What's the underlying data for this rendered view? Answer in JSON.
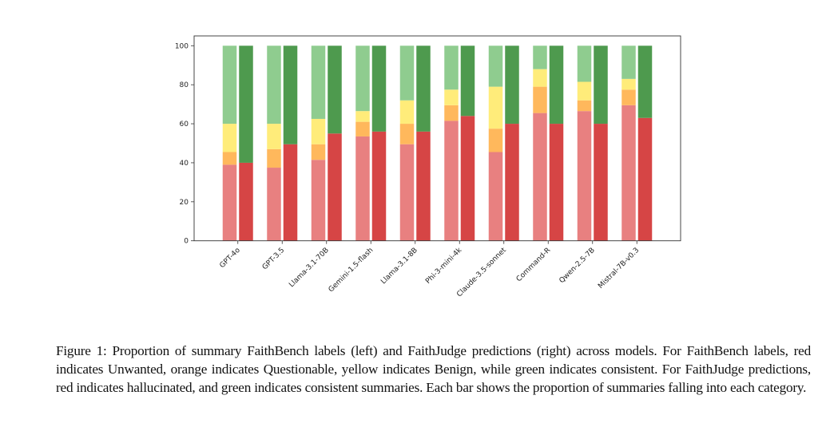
{
  "chart_data": {
    "type": "bar",
    "stacked": true,
    "title": "",
    "xlabel": "",
    "ylabel": "",
    "ylim": [
      0,
      100
    ],
    "yticks": [
      0,
      20,
      40,
      60,
      80,
      100
    ],
    "grid": false,
    "categories": [
      "GPT-4o",
      "GPT-3.5",
      "Llama-3.1-70B",
      "Gemini-1.5-flash",
      "Llama-3.1-8B",
      "Phi-3-mini-4k",
      "Claude-3.5-sonnet",
      "Command-R",
      "Qwen-2.5-7B",
      "Mistral-7B-v0.3"
    ],
    "groups": [
      {
        "name": "FaithBench labels",
        "position": "left",
        "series": [
          {
            "name": "Unwanted",
            "color": "#e88080",
            "values": [
              39,
              37.5,
              41.5,
              53.5,
              49.5,
              61.5,
              45.5,
              65.5,
              66.5,
              69.5
            ]
          },
          {
            "name": "Questionable",
            "color": "#ffb85c",
            "values": [
              6.5,
              9.5,
              8,
              7.5,
              10.5,
              8,
              12,
              13.5,
              5.5,
              8
            ]
          },
          {
            "name": "Benign",
            "color": "#ffec7a",
            "values": [
              14.5,
              13,
              13,
              5.5,
              12,
              8,
              21.5,
              9,
              9.5,
              5.5
            ]
          },
          {
            "name": "consistent",
            "color": "#8fcc8f",
            "values": [
              40,
              40,
              37.5,
              33.5,
              28,
              22.5,
              21,
              12,
              18.5,
              17
            ]
          }
        ]
      },
      {
        "name": "FaithJudge predictions",
        "position": "right",
        "series": [
          {
            "name": "hallucinated",
            "color": "#d64545",
            "values": [
              40,
              49.5,
              55,
              56,
              56,
              64,
              60,
              60,
              60,
              63
            ]
          },
          {
            "name": "consistent",
            "color": "#4e9a4e",
            "values": [
              60,
              50.5,
              45,
              44,
              44,
              36,
              40,
              40,
              40,
              37
            ]
          }
        ]
      }
    ]
  },
  "caption": "Figure 1: Proportion of summary FaithBench labels (left) and FaithJudge predictions (right) across models. For FaithBench labels, red indicates Unwanted, orange indicates Questionable, yellow indicates Benign, while green indicates consistent. For FaithJudge predictions, red indicates hallucinated, and green indicates consistent summaries. Each bar shows the proportion of summaries falling into each category."
}
